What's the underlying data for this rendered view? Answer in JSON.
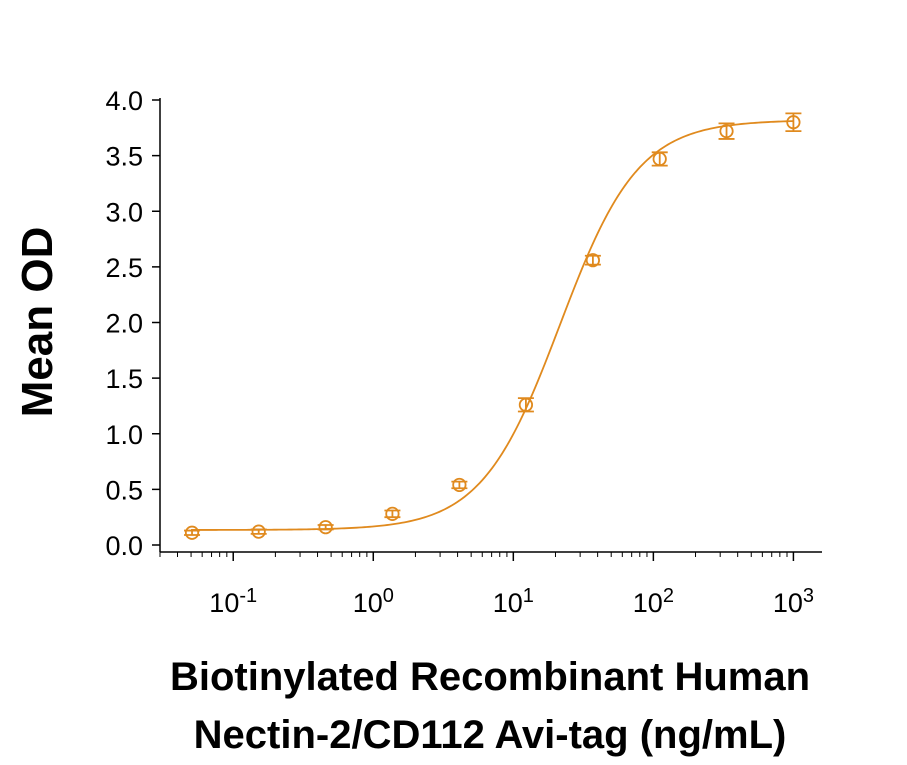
{
  "chart_data": {
    "type": "scatter",
    "xscale": "log",
    "xlim": [
      0.03,
      1600
    ],
    "ylim": [
      0,
      4.0
    ],
    "ylabel": "Mean OD",
    "xlabel_lines": [
      "Biotinylated Recombinant Human",
      "Nectin-2/CD112 Avi-tag (ng/mL)"
    ],
    "y_ticks": [
      {
        "value": 0.0,
        "label": "0.0"
      },
      {
        "value": 0.5,
        "label": "0.5"
      },
      {
        "value": 1.0,
        "label": "1.0"
      },
      {
        "value": 1.5,
        "label": "1.5"
      },
      {
        "value": 2.0,
        "label": "2.0"
      },
      {
        "value": 2.5,
        "label": "2.5"
      },
      {
        "value": 3.0,
        "label": "3.0"
      },
      {
        "value": 3.5,
        "label": "3.5"
      },
      {
        "value": 4.0,
        "label": "4.0"
      }
    ],
    "x_ticks": [
      {
        "value": 0.1,
        "base": "10",
        "exp": "-1"
      },
      {
        "value": 1,
        "base": "10",
        "exp": "0"
      },
      {
        "value": 10,
        "base": "10",
        "exp": "1"
      },
      {
        "value": 100,
        "base": "10",
        "exp": "2"
      },
      {
        "value": 1000,
        "base": "10",
        "exp": "3"
      }
    ],
    "series": [
      {
        "color": "#E08A1E",
        "points": [
          {
            "x": 0.0508,
            "y": 0.11,
            "err": 0.02
          },
          {
            "x": 0.152,
            "y": 0.12,
            "err": 0.02
          },
          {
            "x": 0.457,
            "y": 0.16,
            "err": 0.02
          },
          {
            "x": 1.37,
            "y": 0.28,
            "err": 0.03
          },
          {
            "x": 4.12,
            "y": 0.54,
            "err": 0.03
          },
          {
            "x": 12.3,
            "y": 1.26,
            "err": 0.06
          },
          {
            "x": 37.0,
            "y": 2.56,
            "err": 0.04
          },
          {
            "x": 111.0,
            "y": 3.47,
            "err": 0.06
          },
          {
            "x": 333.0,
            "y": 3.72,
            "err": 0.07
          },
          {
            "x": 1000.0,
            "y": 3.8,
            "err": 0.08
          }
        ],
        "fit": {
          "bottom": 0.135,
          "top": 3.82,
          "ec50": 21.5,
          "hill": 1.55,
          "from": 0.05,
          "to": 1000
        }
      }
    ]
  }
}
